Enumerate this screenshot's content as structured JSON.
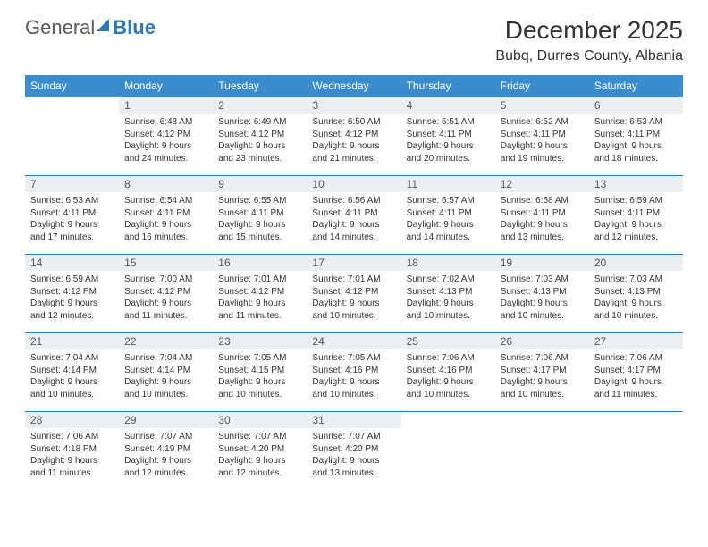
{
  "logo": {
    "text_main": "General",
    "text_accent": "Blue",
    "accent_color": "#2f78b6"
  },
  "header": {
    "month_title": "December 2025",
    "location": "Bubq, Durres County, Albania"
  },
  "colors": {
    "header_bg": "#3b8ccc",
    "header_text": "#ffffff",
    "daynum_bg": "#eceff2",
    "daynum_text": "#555555",
    "body_text": "#333333",
    "border": "#2f78b6",
    "page_bg": "#ffffff"
  },
  "day_names": [
    "Sunday",
    "Monday",
    "Tuesday",
    "Wednesday",
    "Thursday",
    "Friday",
    "Saturday"
  ],
  "weeks": [
    [
      null,
      {
        "d": "1",
        "sr": "6:48 AM",
        "ss": "4:12 PM",
        "dl": "9 hours and 24 minutes."
      },
      {
        "d": "2",
        "sr": "6:49 AM",
        "ss": "4:12 PM",
        "dl": "9 hours and 23 minutes."
      },
      {
        "d": "3",
        "sr": "6:50 AM",
        "ss": "4:12 PM",
        "dl": "9 hours and 21 minutes."
      },
      {
        "d": "4",
        "sr": "6:51 AM",
        "ss": "4:11 PM",
        "dl": "9 hours and 20 minutes."
      },
      {
        "d": "5",
        "sr": "6:52 AM",
        "ss": "4:11 PM",
        "dl": "9 hours and 19 minutes."
      },
      {
        "d": "6",
        "sr": "6:53 AM",
        "ss": "4:11 PM",
        "dl": "9 hours and 18 minutes."
      }
    ],
    [
      {
        "d": "7",
        "sr": "6:53 AM",
        "ss": "4:11 PM",
        "dl": "9 hours and 17 minutes."
      },
      {
        "d": "8",
        "sr": "6:54 AM",
        "ss": "4:11 PM",
        "dl": "9 hours and 16 minutes."
      },
      {
        "d": "9",
        "sr": "6:55 AM",
        "ss": "4:11 PM",
        "dl": "9 hours and 15 minutes."
      },
      {
        "d": "10",
        "sr": "6:56 AM",
        "ss": "4:11 PM",
        "dl": "9 hours and 14 minutes."
      },
      {
        "d": "11",
        "sr": "6:57 AM",
        "ss": "4:11 PM",
        "dl": "9 hours and 14 minutes."
      },
      {
        "d": "12",
        "sr": "6:58 AM",
        "ss": "4:11 PM",
        "dl": "9 hours and 13 minutes."
      },
      {
        "d": "13",
        "sr": "6:59 AM",
        "ss": "4:11 PM",
        "dl": "9 hours and 12 minutes."
      }
    ],
    [
      {
        "d": "14",
        "sr": "6:59 AM",
        "ss": "4:12 PM",
        "dl": "9 hours and 12 minutes."
      },
      {
        "d": "15",
        "sr": "7:00 AM",
        "ss": "4:12 PM",
        "dl": "9 hours and 11 minutes."
      },
      {
        "d": "16",
        "sr": "7:01 AM",
        "ss": "4:12 PM",
        "dl": "9 hours and 11 minutes."
      },
      {
        "d": "17",
        "sr": "7:01 AM",
        "ss": "4:12 PM",
        "dl": "9 hours and 10 minutes."
      },
      {
        "d": "18",
        "sr": "7:02 AM",
        "ss": "4:13 PM",
        "dl": "9 hours and 10 minutes."
      },
      {
        "d": "19",
        "sr": "7:03 AM",
        "ss": "4:13 PM",
        "dl": "9 hours and 10 minutes."
      },
      {
        "d": "20",
        "sr": "7:03 AM",
        "ss": "4:13 PM",
        "dl": "9 hours and 10 minutes."
      }
    ],
    [
      {
        "d": "21",
        "sr": "7:04 AM",
        "ss": "4:14 PM",
        "dl": "9 hours and 10 minutes."
      },
      {
        "d": "22",
        "sr": "7:04 AM",
        "ss": "4:14 PM",
        "dl": "9 hours and 10 minutes."
      },
      {
        "d": "23",
        "sr": "7:05 AM",
        "ss": "4:15 PM",
        "dl": "9 hours and 10 minutes."
      },
      {
        "d": "24",
        "sr": "7:05 AM",
        "ss": "4:16 PM",
        "dl": "9 hours and 10 minutes."
      },
      {
        "d": "25",
        "sr": "7:06 AM",
        "ss": "4:16 PM",
        "dl": "9 hours and 10 minutes."
      },
      {
        "d": "26",
        "sr": "7:06 AM",
        "ss": "4:17 PM",
        "dl": "9 hours and 10 minutes."
      },
      {
        "d": "27",
        "sr": "7:06 AM",
        "ss": "4:17 PM",
        "dl": "9 hours and 11 minutes."
      }
    ],
    [
      {
        "d": "28",
        "sr": "7:06 AM",
        "ss": "4:18 PM",
        "dl": "9 hours and 11 minutes."
      },
      {
        "d": "29",
        "sr": "7:07 AM",
        "ss": "4:19 PM",
        "dl": "9 hours and 12 minutes."
      },
      {
        "d": "30",
        "sr": "7:07 AM",
        "ss": "4:20 PM",
        "dl": "9 hours and 12 minutes."
      },
      {
        "d": "31",
        "sr": "7:07 AM",
        "ss": "4:20 PM",
        "dl": "9 hours and 13 minutes."
      },
      null,
      null,
      null
    ]
  ],
  "labels": {
    "sunrise": "Sunrise:",
    "sunset": "Sunset:",
    "daylight": "Daylight:"
  }
}
